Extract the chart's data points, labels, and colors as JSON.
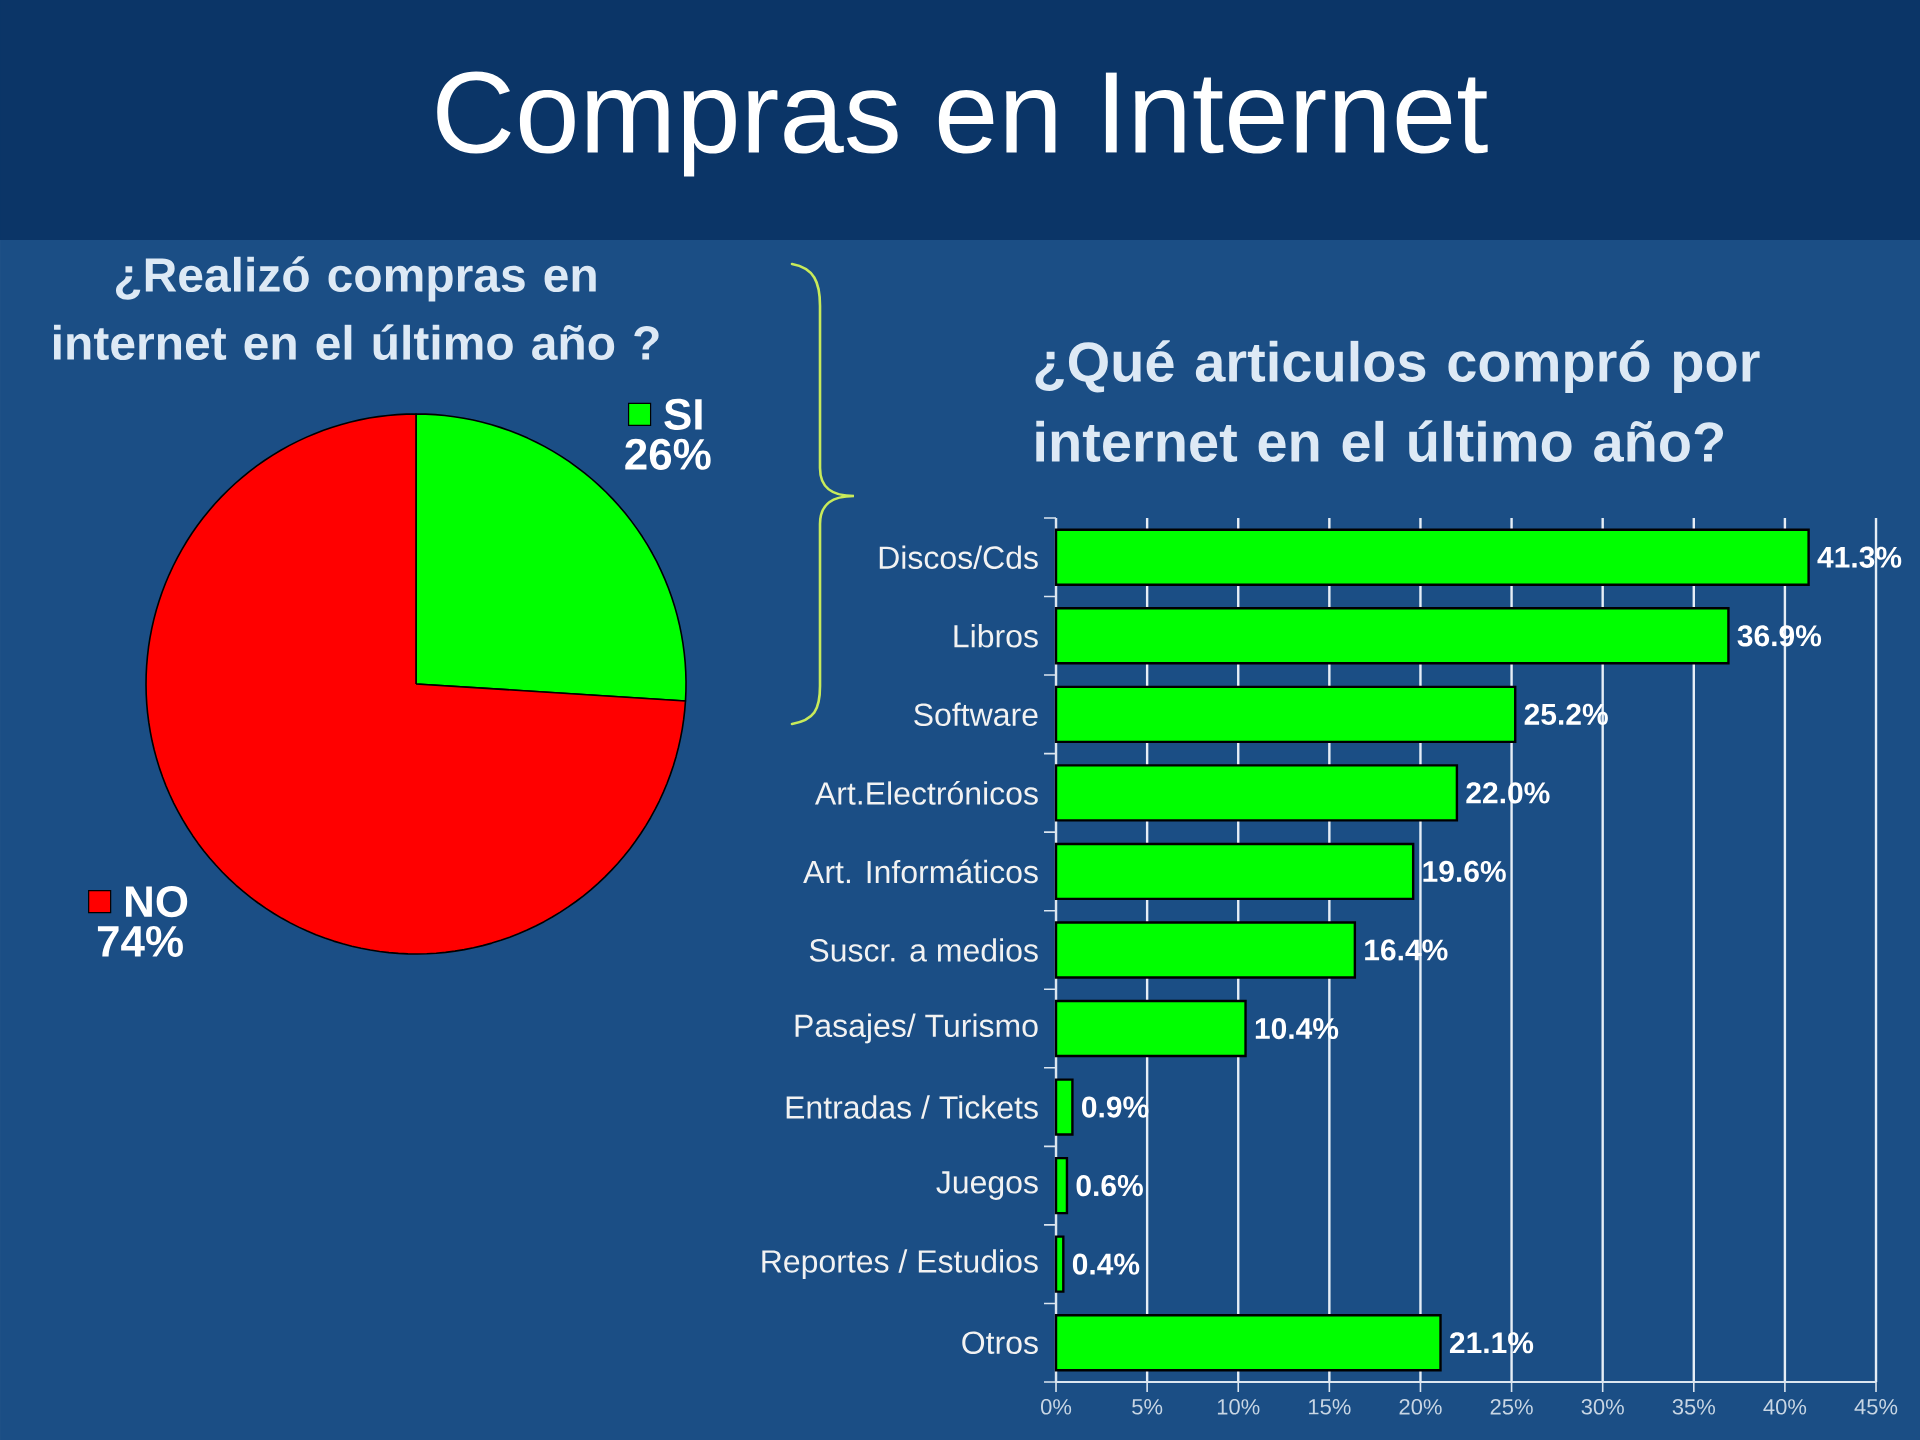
{
  "chart_data": [
    {
      "type": "other",
      "title": "Compras en Internet"
    },
    {
      "type": "pie",
      "title": "¿Realizó compras en internet en el último año ?",
      "categories": [
        "SI",
        "NO"
      ],
      "values": [
        26,
        74
      ],
      "colors": [
        "#00ff00",
        "#ff0000"
      ],
      "value_labels": [
        "26%",
        "74%"
      ],
      "legend": "top right"
    },
    {
      "type": "bar",
      "orientation": "horizontal",
      "title": "¿Qué articulos compró por internet en el último año?",
      "categories": [
        "Discos/Cds",
        "Libros",
        "Software",
        "Art.Electrónicos",
        "Art. Informáticos",
        "Suscr. a medios",
        "Pasajes/ Turismo",
        "Entradas / Tickets",
        "Juegos",
        "Reportes / Estudios",
        "Otros"
      ],
      "values": [
        41.3,
        36.9,
        25.2,
        22.0,
        19.6,
        16.4,
        10.4,
        0.9,
        0.6,
        0.4,
        21.1
      ],
      "color": "#00ff00",
      "value_labels": [
        "41.3%",
        "36.9%",
        "25.2%",
        "22.0%",
        "19.6%",
        "16.4%",
        "10.4%",
        "0.9%",
        "0.6%",
        "0.4%",
        "21.1%"
      ],
      "xlim": [
        0,
        45
      ],
      "xticks": [
        {
          "value": 0,
          "label": "0%"
        },
        {
          "value": 5,
          "label": "5%"
        },
        {
          "value": 10,
          "label": "10%"
        },
        {
          "value": 15,
          "label": "15%"
        },
        {
          "value": 20,
          "label": "20%"
        },
        {
          "value": 25,
          "label": "25%"
        },
        {
          "value": 30,
          "label": "30%"
        },
        {
          "value": 35,
          "label": "35%"
        },
        {
          "value": 40,
          "label": "40%"
        },
        {
          "value": 45,
          "label": "45%"
        }
      ],
      "grid": "x"
    }
  ]
}
